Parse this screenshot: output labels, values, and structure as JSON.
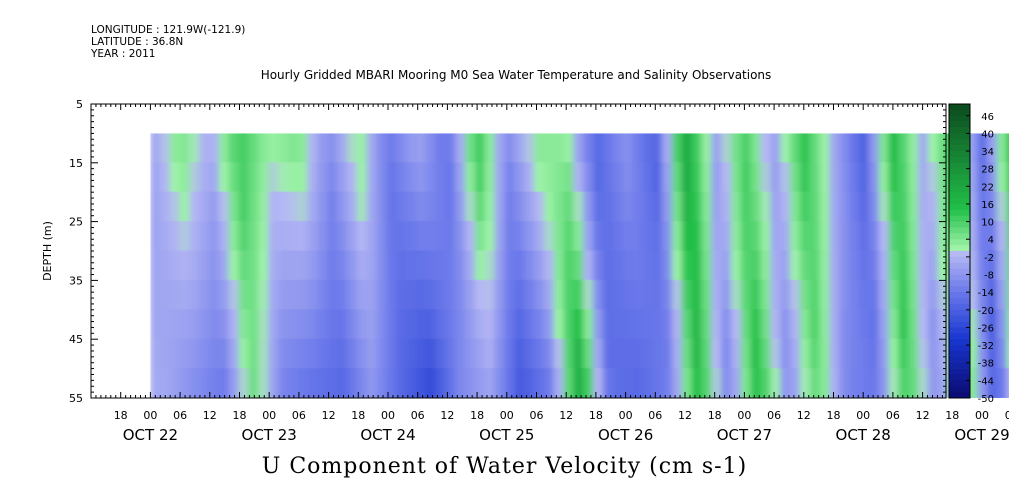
{
  "header": {
    "longitude": "LONGITUDE : 121.9W(-121.9)",
    "latitude": "LATITUDE : 36.8N",
    "year": "YEAR : 2011"
  },
  "title": "Hourly Gridded MBARI Mooring M0 Sea Water Temperature and Salinity Observations",
  "xlabel": "U Component of Water Velocity (cm s-1)",
  "chart_data": {
    "type": "heatmap",
    "title": "Hourly Gridded MBARI Mooring M0 Sea Water Temperature and Salinity Observations",
    "xlabel": "U Component of Water Velocity (cm s-1)",
    "ylabel": "DEPTH (m)",
    "x_range": [
      "OCT 21 12:00",
      "OCT 29 23:00"
    ],
    "data_x_range": [
      "OCT 22 00:00",
      "OCT 29 23:00"
    ],
    "y_range": [
      5,
      55
    ],
    "y_inverted": true,
    "data_depth_range": [
      10,
      55
    ],
    "y_ticks": [
      5,
      15,
      25,
      35,
      45,
      55
    ],
    "x_hour_ticks": [
      "18",
      "00",
      "06",
      "12",
      "18",
      "00",
      "06",
      "12",
      "18",
      "00",
      "06",
      "12",
      "18",
      "00",
      "06",
      "12",
      "18",
      "00",
      "06",
      "12",
      "18",
      "00",
      "06",
      "12",
      "18",
      "00",
      "06",
      "12",
      "18",
      "00",
      "06",
      "12"
    ],
    "x_day_labels": [
      "OCT 22",
      "OCT 23",
      "OCT 24",
      "OCT 25",
      "OCT 26",
      "OCT 27",
      "OCT 28",
      "OCT 29"
    ],
    "colorbar": {
      "min": -50,
      "max": 50,
      "labels": [
        46,
        40,
        34,
        28,
        22,
        16,
        10,
        4,
        -2,
        -8,
        -14,
        -20,
        -26,
        -32,
        -38,
        -44,
        -50
      ]
    },
    "colors": {
      "max_green": "#0b4a1e",
      "mid_green": "#22c04a",
      "light_green": "#9ef2a8",
      "light_blue": "#b6b8f4",
      "mid_blue": "#6a78ea",
      "dark_blue": "#1836d0",
      "min_navy": "#0a0a70"
    },
    "u_velocity_bands": [
      {
        "time": "OCT 22 00:00",
        "surface": -6,
        "bottom": -4
      },
      {
        "time": "OCT 22 06:00",
        "surface": 6,
        "bottom": -10
      },
      {
        "time": "OCT 22 12:00",
        "surface": -4,
        "bottom": -14
      },
      {
        "time": "OCT 22 18:00",
        "surface": 12,
        "bottom": 6
      },
      {
        "time": "OCT 23 00:00",
        "surface": 2,
        "bottom": -12
      },
      {
        "time": "OCT 23 06:00",
        "surface": 6,
        "bottom": -16
      },
      {
        "time": "OCT 23 12:00",
        "surface": -10,
        "bottom": -18
      },
      {
        "time": "OCT 23 18:00",
        "surface": 4,
        "bottom": -8
      },
      {
        "time": "OCT 24 00:00",
        "surface": -14,
        "bottom": -18
      },
      {
        "time": "OCT 24 06:00",
        "surface": -4,
        "bottom": -26
      },
      {
        "time": "OCT 24 12:00",
        "surface": -16,
        "bottom": -10
      },
      {
        "time": "OCT 24 18:00",
        "surface": 14,
        "bottom": -6
      },
      {
        "time": "OCT 25 00:00",
        "surface": -10,
        "bottom": -22
      },
      {
        "time": "OCT 25 06:00",
        "surface": 4,
        "bottom": -14
      },
      {
        "time": "OCT 25 12:00",
        "surface": 2,
        "bottom": 22
      },
      {
        "time": "OCT 25 18:00",
        "surface": -18,
        "bottom": -16
      },
      {
        "time": "OCT 26 00:00",
        "surface": -8,
        "bottom": -18
      },
      {
        "time": "OCT 26 06:00",
        "surface": -20,
        "bottom": -12
      },
      {
        "time": "OCT 26 12:00",
        "surface": 22,
        "bottom": 16
      },
      {
        "time": "OCT 26 18:00",
        "surface": -6,
        "bottom": -12
      },
      {
        "time": "OCT 27 00:00",
        "surface": 10,
        "bottom": 16
      },
      {
        "time": "OCT 27 06:00",
        "surface": -6,
        "bottom": -10
      },
      {
        "time": "OCT 27 12:00",
        "surface": 14,
        "bottom": 8
      },
      {
        "time": "OCT 27 18:00",
        "surface": -4,
        "bottom": -12
      },
      {
        "time": "OCT 28 00:00",
        "surface": -20,
        "bottom": -14
      },
      {
        "time": "OCT 28 06:00",
        "surface": 16,
        "bottom": 12
      },
      {
        "time": "OCT 28 12:00",
        "surface": -4,
        "bottom": -10
      },
      {
        "time": "OCT 28 18:00",
        "surface": 12,
        "bottom": 10
      },
      {
        "time": "OCT 29 00:00",
        "surface": -16,
        "bottom": -22
      },
      {
        "time": "OCT 29 06:00",
        "surface": 14,
        "bottom": 16
      },
      {
        "time": "OCT 29 12:00",
        "surface": -6,
        "bottom": -16
      },
      {
        "time": "OCT 29 18:00",
        "surface": 8,
        "bottom": -4
      }
    ]
  }
}
